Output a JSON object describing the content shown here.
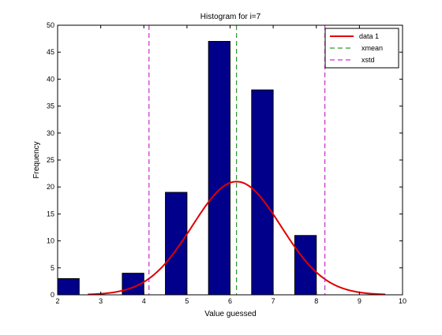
{
  "chart_data": {
    "type": "bar",
    "title": "Histogram for i=7",
    "xlabel": "Value guessed",
    "ylabel": "Frequency",
    "xlim": [
      2,
      10
    ],
    "ylim": [
      0,
      50
    ],
    "xticks": [
      2,
      3,
      4,
      5,
      6,
      7,
      8,
      9,
      10
    ],
    "yticks": [
      0,
      5,
      10,
      15,
      20,
      25,
      30,
      35,
      40,
      45,
      50
    ],
    "bar_color": "#00008B",
    "bars": [
      {
        "x": 2.25,
        "value": 3
      },
      {
        "x": 3.75,
        "value": 4
      },
      {
        "x": 4.75,
        "value": 19
      },
      {
        "x": 5.75,
        "value": 47
      },
      {
        "x": 6.75,
        "value": 38
      },
      {
        "x": 7.75,
        "value": 11
      }
    ],
    "bar_width": 0.5,
    "series": [
      {
        "name": "data 1",
        "type": "line",
        "color": "#E00000",
        "mean": 6.15,
        "std": 1.03,
        "peak": 21,
        "x_range": [
          2.7,
          9.6
        ]
      },
      {
        "name": "xmean",
        "type": "vline",
        "style": "dashed",
        "color": "#007F00",
        "x": 6.15
      },
      {
        "name": "xstd",
        "type": "vline",
        "style": "dashed",
        "color": "#BF00BF",
        "x": [
          4.12,
          8.2
        ]
      }
    ],
    "legend_position": "top-right",
    "grid": false
  }
}
